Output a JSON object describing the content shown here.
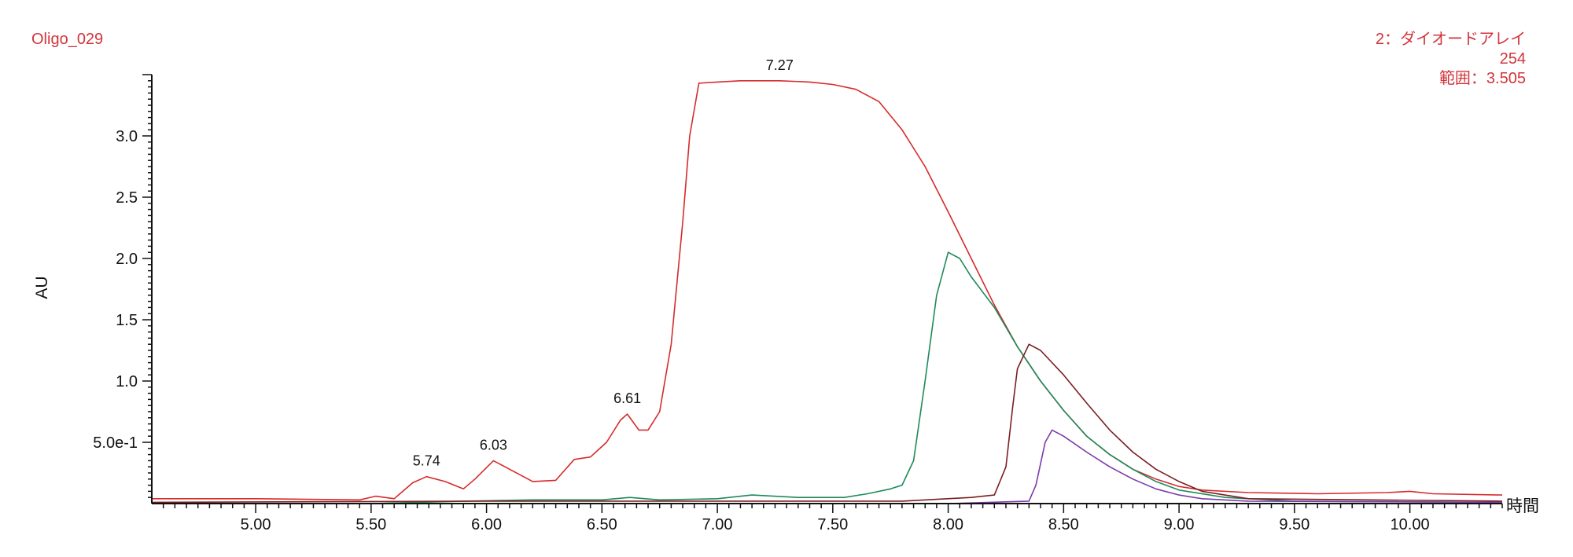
{
  "header": {
    "sample_name": "Oligo_029",
    "detector_line1": "2：ダイオードアレイ",
    "detector_line2": "254",
    "detector_line3": "範囲：3.505"
  },
  "colors": {
    "header_text": "#d2343b",
    "axis": "#111111"
  },
  "chart_data": {
    "type": "line",
    "title": "",
    "xlabel": "時間",
    "ylabel": "AU",
    "xlim": [
      4.55,
      10.4
    ],
    "ylim": [
      0,
      3.5
    ],
    "x_ticks": [
      5.0,
      5.5,
      6.0,
      6.5,
      7.0,
      7.5,
      8.0,
      8.5,
      9.0,
      9.5,
      10.0
    ],
    "x_tick_labels": [
      "5.00",
      "5.50",
      "6.00",
      "6.50",
      "7.00",
      "7.50",
      "8.00",
      "8.50",
      "9.00",
      "9.50",
      "10.00"
    ],
    "y_ticks": [
      0.5,
      1.0,
      1.5,
      2.0,
      2.5,
      3.0
    ],
    "y_tick_labels": [
      "5.0e-1",
      "1.0",
      "1.5",
      "2.0",
      "2.5",
      "3.0"
    ],
    "grid": false,
    "legend": "none",
    "peak_labels": [
      {
        "x": 5.74,
        "y": 0.22,
        "label": "5.74"
      },
      {
        "x": 6.03,
        "y": 0.35,
        "label": "6.03"
      },
      {
        "x": 6.61,
        "y": 0.73,
        "label": "6.61"
      },
      {
        "x": 7.27,
        "y": 3.45,
        "label": "7.27"
      }
    ],
    "series": [
      {
        "color": "#d62b2b",
        "points": [
          [
            4.55,
            0.04
          ],
          [
            5.0,
            0.04
          ],
          [
            5.45,
            0.03
          ],
          [
            5.52,
            0.06
          ],
          [
            5.6,
            0.04
          ],
          [
            5.68,
            0.17
          ],
          [
            5.74,
            0.22
          ],
          [
            5.82,
            0.18
          ],
          [
            5.9,
            0.12
          ],
          [
            5.95,
            0.2
          ],
          [
            6.03,
            0.35
          ],
          [
            6.1,
            0.28
          ],
          [
            6.2,
            0.18
          ],
          [
            6.3,
            0.19
          ],
          [
            6.38,
            0.36
          ],
          [
            6.45,
            0.38
          ],
          [
            6.52,
            0.5
          ],
          [
            6.58,
            0.68
          ],
          [
            6.61,
            0.73
          ],
          [
            6.66,
            0.6
          ],
          [
            6.7,
            0.6
          ],
          [
            6.75,
            0.75
          ],
          [
            6.8,
            1.3
          ],
          [
            6.85,
            2.3
          ],
          [
            6.88,
            3.0
          ],
          [
            6.92,
            3.43
          ],
          [
            7.0,
            3.44
          ],
          [
            7.1,
            3.45
          ],
          [
            7.27,
            3.45
          ],
          [
            7.4,
            3.44
          ],
          [
            7.5,
            3.42
          ],
          [
            7.6,
            3.38
          ],
          [
            7.7,
            3.28
          ],
          [
            7.8,
            3.05
          ],
          [
            7.9,
            2.75
          ],
          [
            8.0,
            2.38
          ],
          [
            8.1,
            2.0
          ],
          [
            8.2,
            1.62
          ],
          [
            8.3,
            1.28
          ],
          [
            8.4,
            1.0
          ],
          [
            8.5,
            0.76
          ],
          [
            8.6,
            0.55
          ],
          [
            8.7,
            0.4
          ],
          [
            8.8,
            0.28
          ],
          [
            8.9,
            0.2
          ],
          [
            9.0,
            0.14
          ],
          [
            9.1,
            0.11
          ],
          [
            9.3,
            0.09
          ],
          [
            9.6,
            0.08
          ],
          [
            9.9,
            0.09
          ],
          [
            10.0,
            0.1
          ],
          [
            10.1,
            0.08
          ],
          [
            10.4,
            0.07
          ]
        ]
      },
      {
        "color": "#1e8a5a",
        "points": [
          [
            4.55,
            0.0
          ],
          [
            5.5,
            0.0
          ],
          [
            5.9,
            0.02
          ],
          [
            6.2,
            0.03
          ],
          [
            6.5,
            0.03
          ],
          [
            6.62,
            0.05
          ],
          [
            6.75,
            0.03
          ],
          [
            7.0,
            0.04
          ],
          [
            7.15,
            0.07
          ],
          [
            7.35,
            0.05
          ],
          [
            7.55,
            0.05
          ],
          [
            7.65,
            0.08
          ],
          [
            7.75,
            0.12
          ],
          [
            7.8,
            0.15
          ],
          [
            7.85,
            0.35
          ],
          [
            7.9,
            1.0
          ],
          [
            7.95,
            1.7
          ],
          [
            8.0,
            2.05
          ],
          [
            8.05,
            2.0
          ],
          [
            8.1,
            1.85
          ],
          [
            8.2,
            1.6
          ],
          [
            8.3,
            1.28
          ],
          [
            8.4,
            1.0
          ],
          [
            8.5,
            0.76
          ],
          [
            8.6,
            0.55
          ],
          [
            8.7,
            0.4
          ],
          [
            8.8,
            0.28
          ],
          [
            8.9,
            0.18
          ],
          [
            9.0,
            0.11
          ],
          [
            9.2,
            0.05
          ],
          [
            9.5,
            0.02
          ],
          [
            10.4,
            0.01
          ]
        ]
      },
      {
        "color": "#7a1e22",
        "points": [
          [
            4.55,
            0.01
          ],
          [
            6.0,
            0.02
          ],
          [
            7.0,
            0.02
          ],
          [
            7.8,
            0.02
          ],
          [
            8.1,
            0.05
          ],
          [
            8.2,
            0.07
          ],
          [
            8.25,
            0.3
          ],
          [
            8.28,
            0.8
          ],
          [
            8.3,
            1.1
          ],
          [
            8.35,
            1.3
          ],
          [
            8.4,
            1.25
          ],
          [
            8.5,
            1.05
          ],
          [
            8.6,
            0.82
          ],
          [
            8.7,
            0.6
          ],
          [
            8.8,
            0.42
          ],
          [
            8.9,
            0.28
          ],
          [
            9.0,
            0.18
          ],
          [
            9.1,
            0.1
          ],
          [
            9.3,
            0.04
          ],
          [
            10.4,
            0.02
          ]
        ]
      },
      {
        "color": "#7b3aa8",
        "points": [
          [
            4.55,
            0.0
          ],
          [
            8.0,
            0.0
          ],
          [
            8.35,
            0.02
          ],
          [
            8.38,
            0.15
          ],
          [
            8.42,
            0.5
          ],
          [
            8.45,
            0.6
          ],
          [
            8.5,
            0.55
          ],
          [
            8.6,
            0.42
          ],
          [
            8.7,
            0.3
          ],
          [
            8.8,
            0.2
          ],
          [
            8.9,
            0.12
          ],
          [
            9.0,
            0.07
          ],
          [
            9.1,
            0.04
          ],
          [
            9.3,
            0.02
          ],
          [
            10.4,
            0.01
          ]
        ]
      }
    ]
  }
}
